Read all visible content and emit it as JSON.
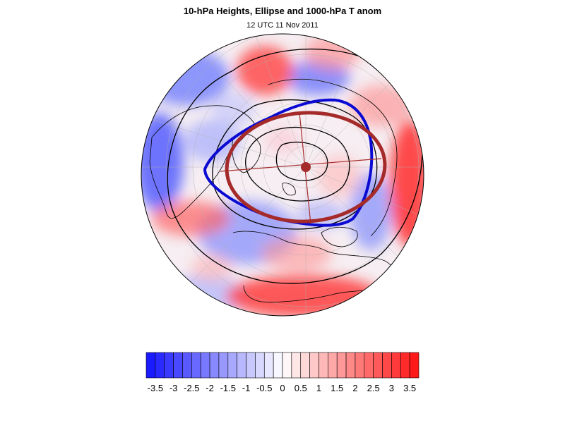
{
  "figure": {
    "title": "10-hPa Heights, Ellipse and 1000-hPa T anom",
    "subtitle": "12 UTC 11 Nov 2011"
  },
  "colors": {
    "cold": "#1a1aff",
    "warm": "#ff1a1a",
    "ellipse": "#a52a2a",
    "contour_zero": "#0a0ad2",
    "coast": "#000000"
  },
  "colorbar": {
    "labels": [
      "-3.5",
      "-3",
      "-2.5",
      "-2",
      "-1.5",
      "-1",
      "-0.5",
      "0",
      "0.5",
      "1",
      "1.5",
      "2",
      "2.5",
      "3",
      "3.5"
    ],
    "min": -3.75,
    "max": 3.75,
    "step": 0.25
  }
}
